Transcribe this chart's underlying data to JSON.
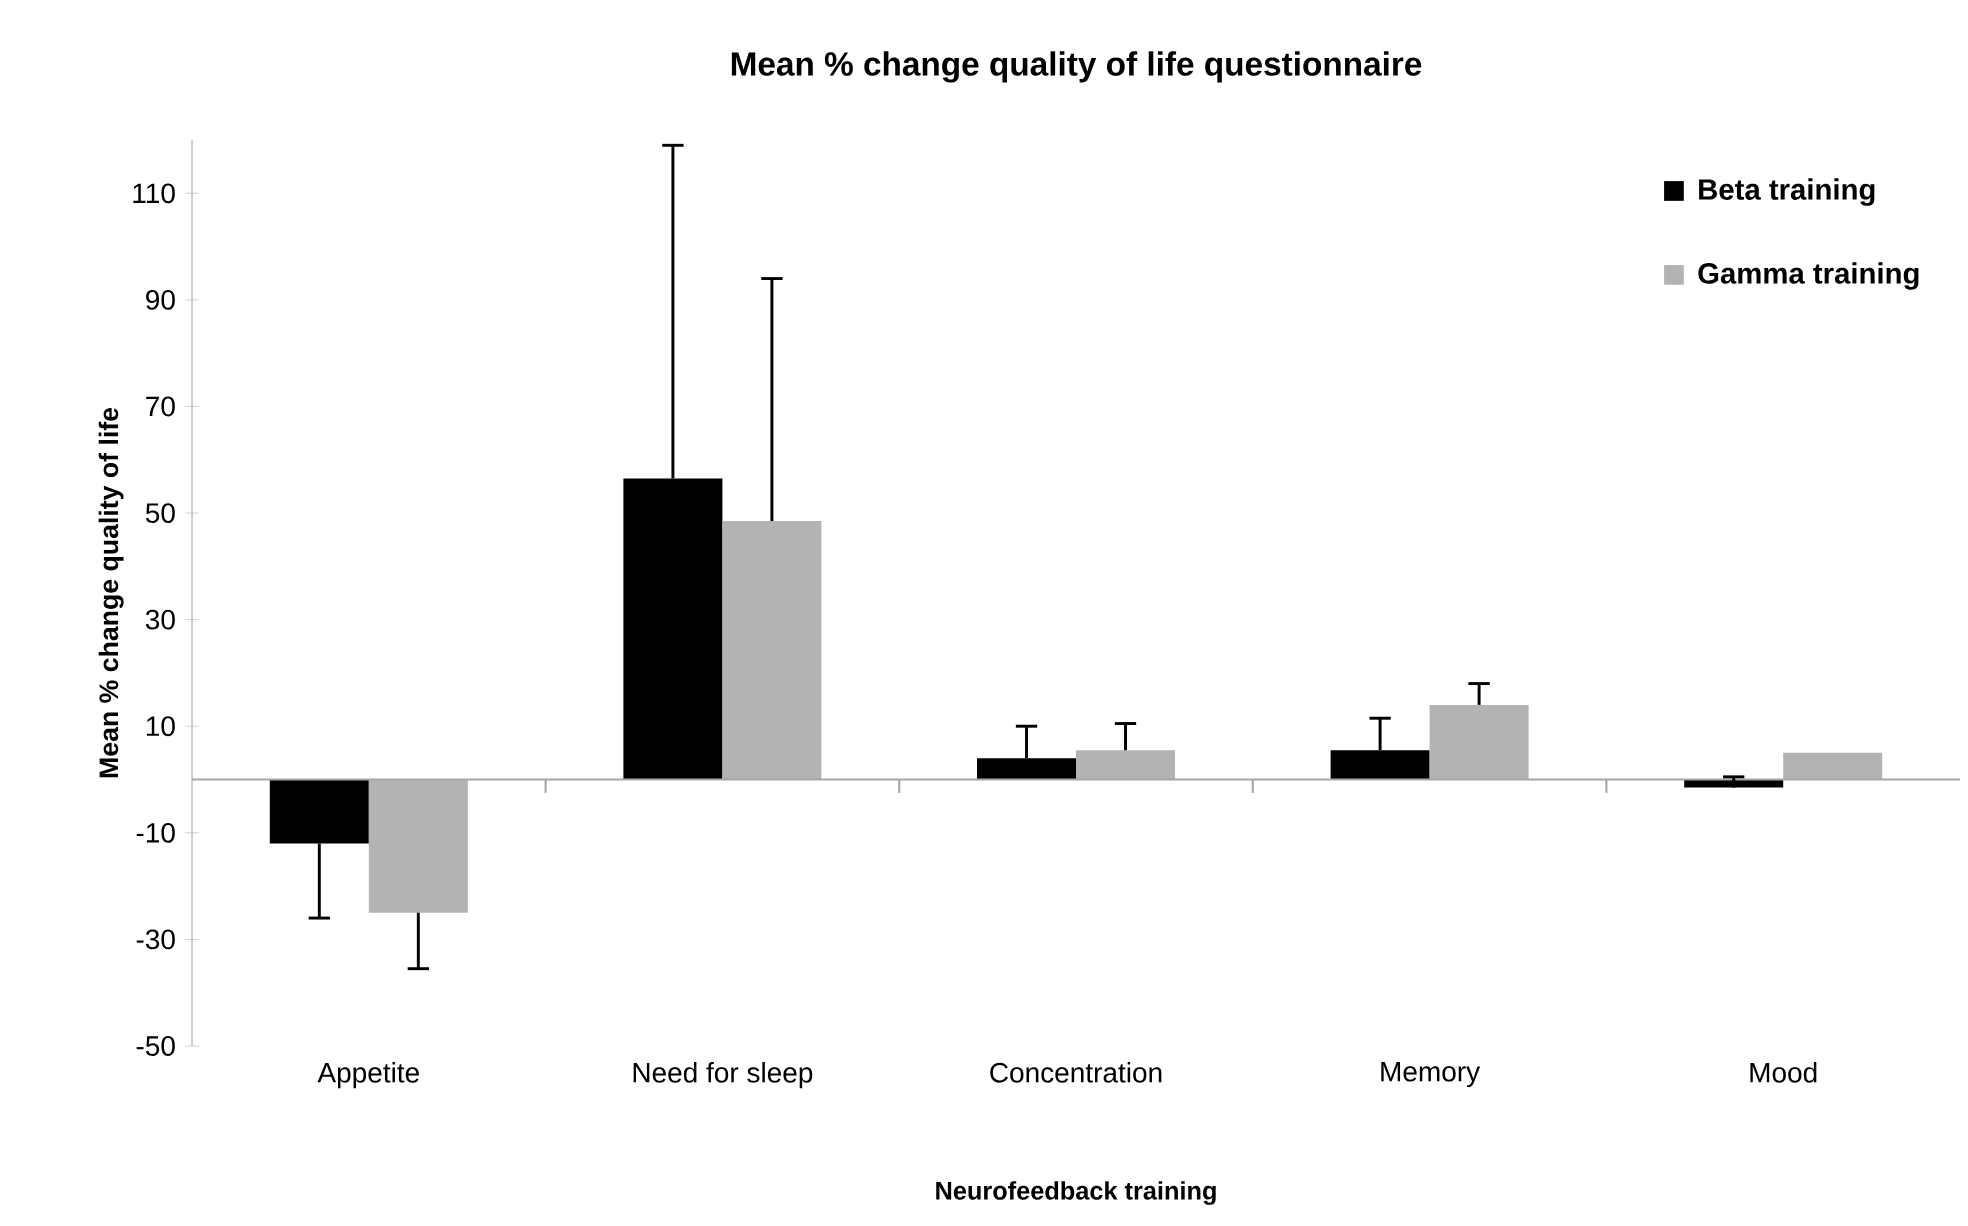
{
  "chart_data": {
    "type": "bar",
    "title": "Mean % change quality of life questionnaire",
    "xlabel": "Neurofeedback training",
    "ylabel": "Mean % change  quality of life",
    "categories": [
      "Appetite",
      "Need for sleep",
      "Concentration",
      "Memory",
      "Mood"
    ],
    "series": [
      {
        "name": "Beta training",
        "color": "#000000",
        "values": [
          -12,
          56.5,
          4,
          5.5,
          -1.5
        ],
        "errors": [
          [
            -26,
            -12
          ],
          [
            56.5,
            119
          ],
          [
            4,
            10
          ],
          [
            5.5,
            11.5
          ],
          [
            -1.5,
            0.5
          ]
        ]
      },
      {
        "name": "Gamma training",
        "color": "#b3b3b3",
        "values": [
          -25,
          48.5,
          5.5,
          14,
          5
        ],
        "errors": [
          [
            -35.5,
            -25
          ],
          [
            48.5,
            94
          ],
          [
            5.5,
            10.5
          ],
          [
            14,
            18
          ],
          null
        ]
      }
    ],
    "ylim": [
      -50,
      120
    ],
    "yticks": [
      -50,
      -30,
      -10,
      10,
      30,
      50,
      70,
      90,
      110
    ],
    "grid": false,
    "legend": "top right"
  }
}
